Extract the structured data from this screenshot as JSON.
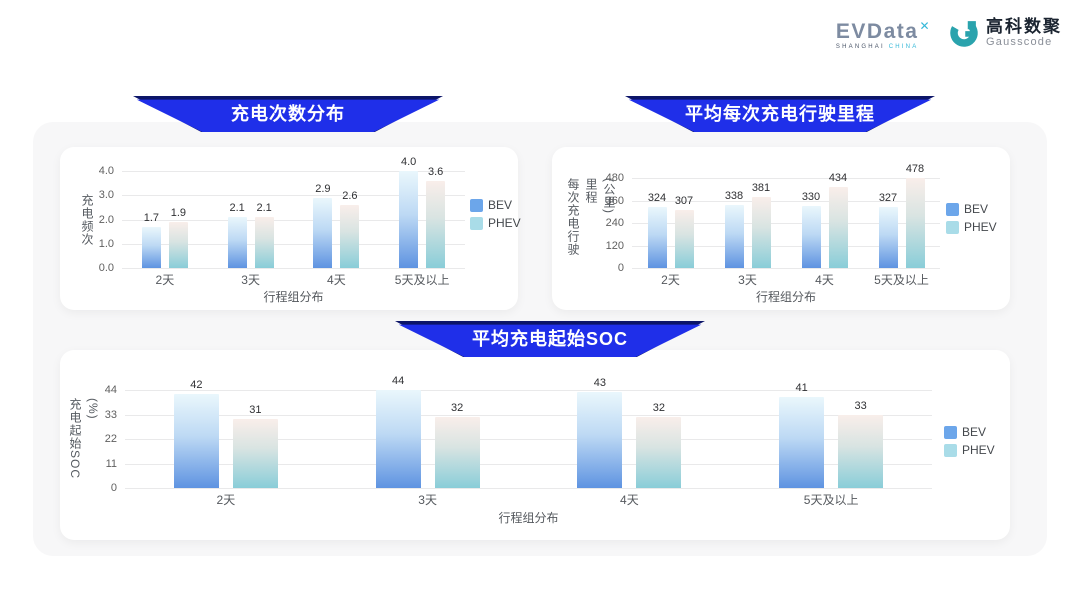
{
  "logo": {
    "brand": "EVData",
    "brand_mark": "✕",
    "brand_sub_1": "SHANGHAI",
    "brand_sub_2": "CHINA",
    "partner_cn": "高科数聚",
    "partner_en": "Gausscode"
  },
  "colors": {
    "banner_blue": "#1f2fe9",
    "banner_dark": "#0c1568",
    "bev_gradient_top": "#eaf7fc",
    "bev_gradient_mid": "#bdd9f4",
    "bev_gradient_bottom": "#5e93e1",
    "phev_gradient_top": "#f9eeea",
    "phev_gradient_mid": "#d9e4e2",
    "phev_gradient_bottom": "#89cdd8",
    "legend_bev": "#6ca6ea",
    "legend_phev": "#a9dce8",
    "partner_teal": "#2aa3ad"
  },
  "chart_data": [
    {
      "type": "bar",
      "title": "充电次数分布",
      "ylabel": "充电频次",
      "xlabel": "行程组分布",
      "categories": [
        "2天",
        "3天",
        "4天",
        "5天及以上"
      ],
      "series": [
        {
          "name": "BEV",
          "values": [
            1.7,
            2.1,
            2.9,
            4.0
          ]
        },
        {
          "name": "PHEV",
          "values": [
            1.9,
            2.1,
            2.6,
            3.6
          ]
        }
      ],
      "y_ticks": [
        "0.0",
        "1.0",
        "2.0",
        "3.0",
        "4.0"
      ],
      "ylim": [
        0,
        4
      ],
      "label_decimals": 1,
      "grid": true,
      "legend_position": "right"
    },
    {
      "type": "bar",
      "title": "平均每次充电行驶里程",
      "ylabel": "每次充电行驶里程\n(公里)",
      "xlabel": "行程组分布",
      "categories": [
        "2天",
        "3天",
        "4天",
        "5天及以上"
      ],
      "series": [
        {
          "name": "BEV",
          "values": [
            324,
            338,
            330,
            327
          ]
        },
        {
          "name": "PHEV",
          "values": [
            307,
            381,
            434,
            478
          ]
        }
      ],
      "y_ticks": [
        "0",
        "120",
        "240",
        "360",
        "480"
      ],
      "ylim": [
        0,
        480
      ],
      "label_decimals": 0,
      "grid": true,
      "legend_position": "right"
    },
    {
      "type": "bar",
      "title": "平均充电起始SOC",
      "ylabel": "充电起始SOC\n(%)",
      "xlabel": "行程组分布",
      "categories": [
        "2天",
        "3天",
        "4天",
        "5天及以上"
      ],
      "series": [
        {
          "name": "BEV",
          "values": [
            42,
            44,
            43,
            41
          ]
        },
        {
          "name": "PHEV",
          "values": [
            31,
            32,
            32,
            33
          ]
        }
      ],
      "y_ticks": [
        "0",
        "11",
        "22",
        "33",
        "44"
      ],
      "ylim": [
        0,
        44
      ],
      "label_decimals": 0,
      "grid": true,
      "legend_position": "right"
    }
  ]
}
